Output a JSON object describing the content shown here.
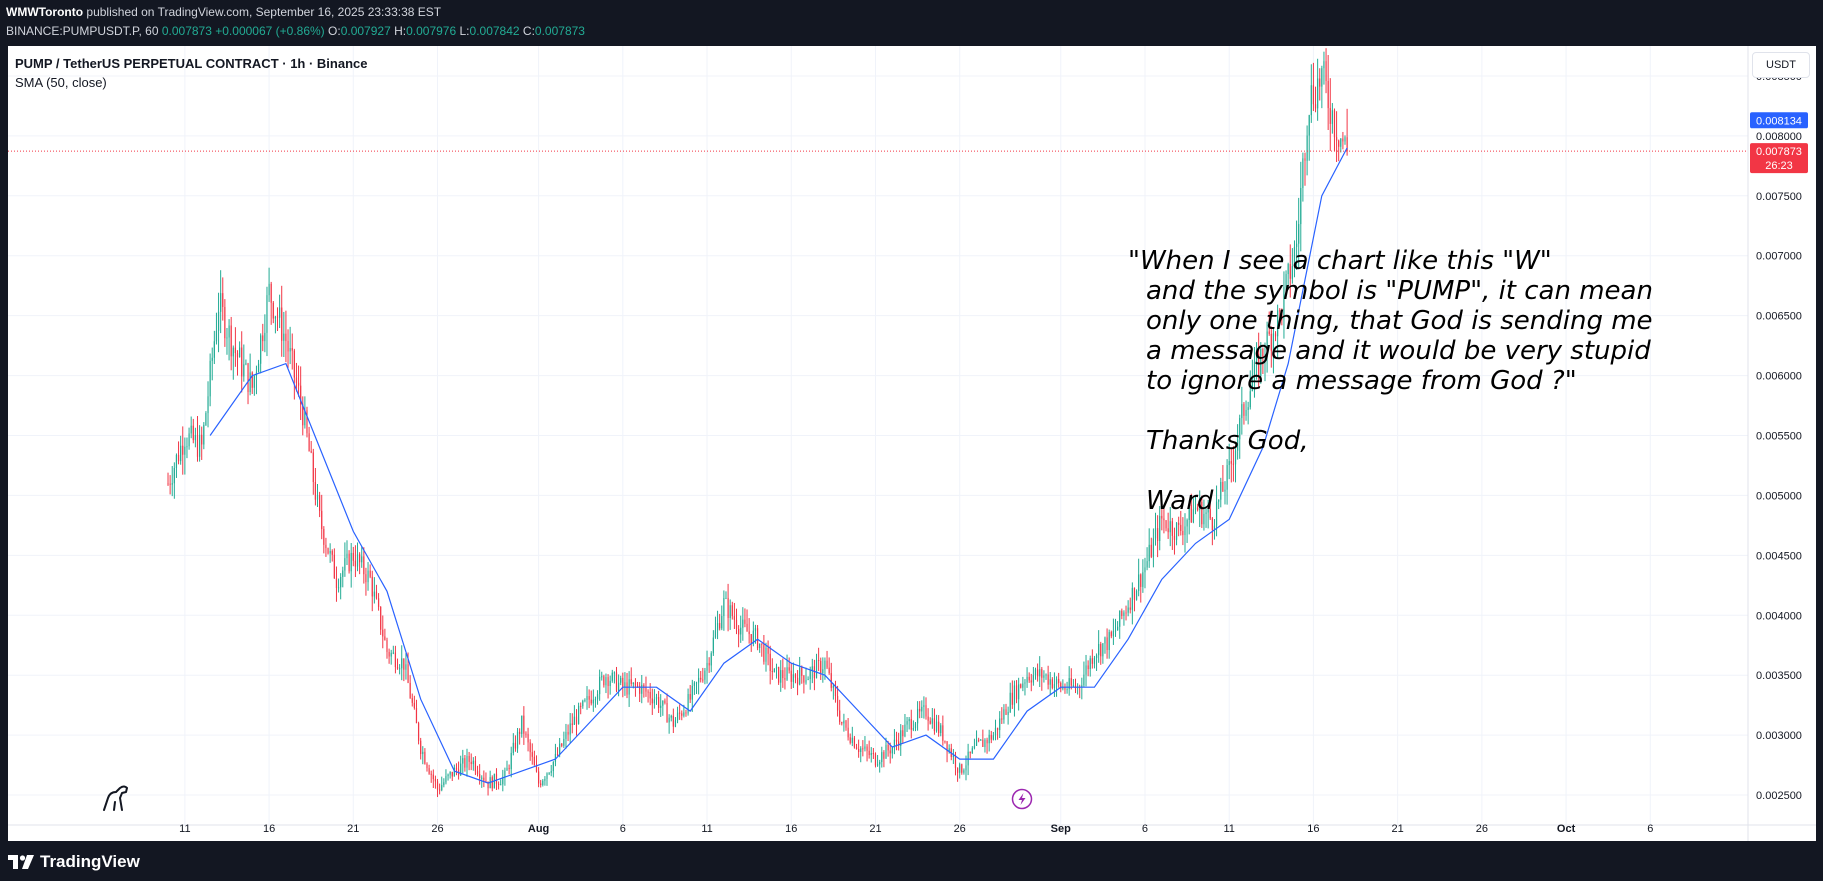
{
  "header": {
    "publisher": "WMWToronto",
    "published_text": " published on TradingView.com, September 16, 2025 23:33:38 EST",
    "symbol_text": "BINANCE:PUMPUSDT.P, 60",
    "last_price": "0.007873",
    "change": "+0.000067 (+0.86%)",
    "o_label": "O:",
    "o_value": "0.007927",
    "h_label": "H:",
    "h_value": "0.007976",
    "l_label": "L:",
    "l_value": "0.007842",
    "c_label": "C:",
    "c_value": "0.007873"
  },
  "chart_title": {
    "instrument": "PUMP / TetherUS PERPETUAL CONTRACT · 1h · Binance",
    "indicator": "SMA (50, close)"
  },
  "currency_button": "USDT",
  "annotation": {
    "lines": [
      "\"When I see a chart like this \"W\"",
      "and the symbol is \"PUMP\", it can mean",
      "only one thing, that God is sending me",
      "a message and it would be very stupid",
      "to ignore a message from God ?\""
    ],
    "thanks": "Thanks God,",
    "signature": "Ward"
  },
  "footer": {
    "brand": "TradingView"
  },
  "colors": {
    "up": "#22ab94",
    "down": "#f23645",
    "sma": "#2962ff",
    "background": "#131722"
  },
  "chart_data": {
    "type": "candlestick",
    "title": "PUMP / TetherUS PERPETUAL CONTRACT · 1h · Binance",
    "indicator": "SMA (50, close)",
    "y_unit": "USDT",
    "ylim": [
      0.00225,
      0.00875
    ],
    "y_ticks": [
      "0.008500",
      "0.008000",
      "0.007500",
      "0.007000",
      "0.006500",
      "0.006000",
      "0.005500",
      "0.005000",
      "0.004500",
      "0.004000",
      "0.003500",
      "0.003000",
      "0.002500"
    ],
    "x_tick_labels": [
      "11",
      "16",
      "21",
      "26",
      "Aug",
      "6",
      "11",
      "16",
      "21",
      "26",
      "Sep",
      "6",
      "11",
      "16",
      "21",
      "26",
      "Oct",
      "6"
    ],
    "x_tick_days": [
      11,
      16,
      21,
      26,
      32,
      37,
      42,
      47,
      52,
      57,
      63,
      68,
      73,
      78,
      83,
      88,
      93,
      98
    ],
    "x_day_range": [
      0.5,
      103.8
    ],
    "price_line": 0.007873,
    "price_labels": [
      {
        "value": "0.008134",
        "price": 0.00813,
        "color": "#2962ff"
      },
      {
        "value": "0.007873",
        "price": 0.007873,
        "color": "#f23645",
        "countdown": "26:23"
      }
    ],
    "closes_daily": [
      {
        "day": 10,
        "close": 0.0051
      },
      {
        "day": 11,
        "close": 0.0055
      },
      {
        "day": 12,
        "close": 0.0054
      },
      {
        "day": 13,
        "close": 0.0066
      },
      {
        "day": 14,
        "close": 0.0062
      },
      {
        "day": 15,
        "close": 0.0059
      },
      {
        "day": 16,
        "close": 0.0067
      },
      {
        "day": 17,
        "close": 0.0063
      },
      {
        "day": 18,
        "close": 0.0057
      },
      {
        "day": 19,
        "close": 0.0048
      },
      {
        "day": 20,
        "close": 0.0043
      },
      {
        "day": 21,
        "close": 0.0045
      },
      {
        "day": 22,
        "close": 0.0043
      },
      {
        "day": 23,
        "close": 0.0037
      },
      {
        "day": 24,
        "close": 0.0036
      },
      {
        "day": 25,
        "close": 0.0029
      },
      {
        "day": 26,
        "close": 0.00255
      },
      {
        "day": 27,
        "close": 0.0027
      },
      {
        "day": 28,
        "close": 0.0028
      },
      {
        "day": 29,
        "close": 0.0026
      },
      {
        "day": 30,
        "close": 0.00265
      },
      {
        "day": 31,
        "close": 0.0031
      },
      {
        "day": 32,
        "close": 0.0026
      },
      {
        "day": 33,
        "close": 0.0028
      },
      {
        "day": 34,
        "close": 0.0031
      },
      {
        "day": 35,
        "close": 0.0033
      },
      {
        "day": 36,
        "close": 0.0035
      },
      {
        "day": 37,
        "close": 0.0034
      },
      {
        "day": 38,
        "close": 0.0034
      },
      {
        "day": 39,
        "close": 0.0033
      },
      {
        "day": 40,
        "close": 0.0031
      },
      {
        "day": 41,
        "close": 0.0033
      },
      {
        "day": 42,
        "close": 0.0036
      },
      {
        "day": 43,
        "close": 0.0041
      },
      {
        "day": 44,
        "close": 0.0039
      },
      {
        "day": 45,
        "close": 0.0038
      },
      {
        "day": 46,
        "close": 0.0035
      },
      {
        "day": 47,
        "close": 0.0035
      },
      {
        "day": 48,
        "close": 0.0035
      },
      {
        "day": 49,
        "close": 0.0036
      },
      {
        "day": 50,
        "close": 0.0031
      },
      {
        "day": 51,
        "close": 0.0029
      },
      {
        "day": 52,
        "close": 0.0028
      },
      {
        "day": 53,
        "close": 0.0029
      },
      {
        "day": 54,
        "close": 0.0031
      },
      {
        "day": 55,
        "close": 0.0032
      },
      {
        "day": 56,
        "close": 0.003
      },
      {
        "day": 57,
        "close": 0.0027
      },
      {
        "day": 58,
        "close": 0.0029
      },
      {
        "day": 59,
        "close": 0.003
      },
      {
        "day": 60,
        "close": 0.0033
      },
      {
        "day": 61,
        "close": 0.0035
      },
      {
        "day": 62,
        "close": 0.0035
      },
      {
        "day": 63,
        "close": 0.0034
      },
      {
        "day": 64,
        "close": 0.0034
      },
      {
        "day": 65,
        "close": 0.0037
      },
      {
        "day": 66,
        "close": 0.0038
      },
      {
        "day": 67,
        "close": 0.0041
      },
      {
        "day": 68,
        "close": 0.0044
      },
      {
        "day": 69,
        "close": 0.0048
      },
      {
        "day": 70,
        "close": 0.0047
      },
      {
        "day": 71,
        "close": 0.0049
      },
      {
        "day": 72,
        "close": 0.0048
      },
      {
        "day": 73,
        "close": 0.0052
      },
      {
        "day": 74,
        "close": 0.0058
      },
      {
        "day": 75,
        "close": 0.0062
      },
      {
        "day": 76,
        "close": 0.0065
      },
      {
        "day": 77,
        "close": 0.0071
      },
      {
        "day": 77.7,
        "close": 0.0083
      },
      {
        "day": 78.5,
        "close": 0.0085
      },
      {
        "day": 79.3,
        "close": 0.0081
      },
      {
        "day": 80,
        "close": 0.007873
      }
    ],
    "sma_points": [
      {
        "day": 12.5,
        "value": 0.0055
      },
      {
        "day": 15,
        "value": 0.006
      },
      {
        "day": 17,
        "value": 0.0061
      },
      {
        "day": 19,
        "value": 0.0054
      },
      {
        "day": 21,
        "value": 0.0047
      },
      {
        "day": 23,
        "value": 0.0042
      },
      {
        "day": 25,
        "value": 0.0033
      },
      {
        "day": 27,
        "value": 0.0027
      },
      {
        "day": 29,
        "value": 0.0026
      },
      {
        "day": 31,
        "value": 0.0027
      },
      {
        "day": 33,
        "value": 0.0028
      },
      {
        "day": 35,
        "value": 0.0031
      },
      {
        "day": 37,
        "value": 0.0034
      },
      {
        "day": 39,
        "value": 0.0034
      },
      {
        "day": 41,
        "value": 0.0032
      },
      {
        "day": 43,
        "value": 0.0036
      },
      {
        "day": 45,
        "value": 0.0038
      },
      {
        "day": 47,
        "value": 0.0036
      },
      {
        "day": 49,
        "value": 0.0035
      },
      {
        "day": 51,
        "value": 0.0032
      },
      {
        "day": 53,
        "value": 0.0029
      },
      {
        "day": 55,
        "value": 0.003
      },
      {
        "day": 57,
        "value": 0.0028
      },
      {
        "day": 59,
        "value": 0.0028
      },
      {
        "day": 61,
        "value": 0.0032
      },
      {
        "day": 63,
        "value": 0.0034
      },
      {
        "day": 65,
        "value": 0.0034
      },
      {
        "day": 67,
        "value": 0.0038
      },
      {
        "day": 69,
        "value": 0.0043
      },
      {
        "day": 71,
        "value": 0.0046
      },
      {
        "day": 73,
        "value": 0.0048
      },
      {
        "day": 75,
        "value": 0.0054
      },
      {
        "day": 76.5,
        "value": 0.0061
      },
      {
        "day": 77.5,
        "value": 0.0068
      },
      {
        "day": 78.5,
        "value": 0.0075
      },
      {
        "day": 80,
        "value": 0.0079
      }
    ]
  }
}
